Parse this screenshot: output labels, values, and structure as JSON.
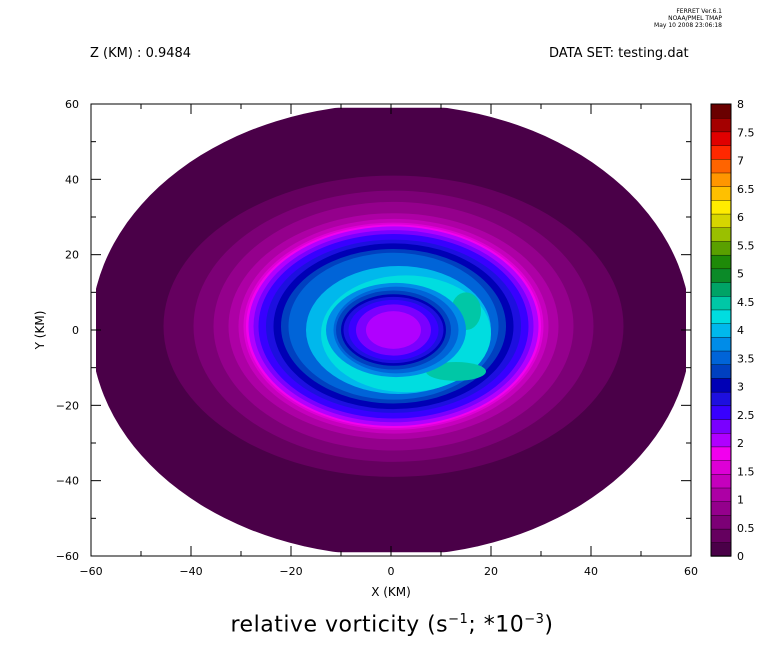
{
  "header": {
    "version": "FERRET  Ver.6.1",
    "org": "NOAA/PMEL TMAP",
    "timestamp": "May 10 2008 23:06:18"
  },
  "z_label": "Z (KM) : 0.9484",
  "dataset_label": "DATA SET: testing.dat",
  "colors": {
    "levels": [
      "#4a0048",
      "#65005f",
      "#7c0076",
      "#94008c",
      "#ad00a5",
      "#c500bd",
      "#dd00d6",
      "#f200ee",
      "#b000ff",
      "#7a00ff",
      "#3800ff",
      "#1d0fdf",
      "#0000b5",
      "#0040c0",
      "#0064d8",
      "#008ce8",
      "#00b8ec",
      "#00dde0",
      "#00c7a6",
      "#00a366",
      "#0b8a28",
      "#1e8a08",
      "#5aa000",
      "#9ac000",
      "#d6d600",
      "#ffec00",
      "#ffc000",
      "#ff9600",
      "#ff6400",
      "#ff2800",
      "#e00000",
      "#a40000",
      "#6a0000"
    ]
  },
  "chart_data": {
    "type": "heatmap",
    "title": "relative vorticity (s^-1; *10^-3)",
    "title_parts": {
      "main": "relative vorticity (s",
      "sup1": "−1",
      "mid": "; *10",
      "sup2": "−3",
      "end": ")"
    },
    "xlabel": "X (KM)",
    "ylabel": "Y (KM)",
    "xlim": [
      -60,
      60
    ],
    "ylim": [
      -60,
      60
    ],
    "xticks": [
      "−60",
      "−40",
      "−20",
      "0",
      "20",
      "40",
      "60"
    ],
    "yticks": [
      "60",
      "40",
      "20",
      "0",
      "−20",
      "−40",
      "−60"
    ],
    "colorbar": {
      "range": [
        0,
        8
      ],
      "step": 0.25,
      "tick_labels": [
        "8",
        "7.5",
        "7",
        "6.5",
        "6",
        "5.5",
        "5",
        "4.5",
        "4",
        "3.5",
        "3",
        "2.5",
        "2",
        "1.5",
        "1",
        "0.5",
        "0"
      ]
    },
    "contour_regions": [
      {
        "level": 0.0,
        "cx": 0,
        "cy": 0,
        "rx": 60,
        "ry": 60
      },
      {
        "level": 0.25,
        "cx": 0.5,
        "cy": 1,
        "rx": 46,
        "ry": 40
      },
      {
        "level": 0.5,
        "cx": 0.5,
        "cy": 1,
        "rx": 40,
        "ry": 36
      },
      {
        "level": 0.75,
        "cx": 0.5,
        "cy": 1,
        "rx": 36,
        "ry": 33
      },
      {
        "level": 1.0,
        "cx": 0.5,
        "cy": 1,
        "rx": 33,
        "ry": 30
      },
      {
        "level": 1.25,
        "cx": 0.5,
        "cy": 1,
        "rx": 31,
        "ry": 28.5
      },
      {
        "level": 1.5,
        "cx": 0.5,
        "cy": 1,
        "rx": 30,
        "ry": 27.5
      },
      {
        "level": 1.75,
        "cx": 0.5,
        "cy": 1,
        "rx": 29.5,
        "ry": 27
      },
      {
        "level": 2.0,
        "cx": 0.5,
        "cy": 1,
        "rx": 29,
        "ry": 26.5
      },
      {
        "level": 2.25,
        "cx": 0.5,
        "cy": 1,
        "rx": 28,
        "ry": 25.5
      },
      {
        "level": 2.5,
        "cx": 0.5,
        "cy": 1,
        "rx": 27,
        "ry": 24.5
      },
      {
        "level": 2.75,
        "cx": 0.5,
        "cy": 1,
        "rx": 25.5,
        "ry": 23
      },
      {
        "level": 3.0,
        "cx": 0.5,
        "cy": 1,
        "rx": 24,
        "ry": 22
      },
      {
        "level": 3.25,
        "cx": 0.5,
        "cy": 1,
        "rx": 22.5,
        "ry": 20.5
      },
      {
        "level": 3.5,
        "cx": 0.5,
        "cy": 1,
        "rx": 21,
        "ry": 19.5
      },
      {
        "level": 4.0,
        "cx": 1.5,
        "cy": 0,
        "rx": 18.5,
        "ry": 17
      },
      {
        "level": 4.25,
        "cx": 3,
        "cy": -1,
        "rx": 17,
        "ry": 15.5
      },
      {
        "level": 4.5,
        "cx": 13,
        "cy": -11,
        "rx": 6,
        "ry": 2.5
      },
      {
        "level": 4.5,
        "cx": 15,
        "cy": 5,
        "rx": 3,
        "ry": 5
      },
      {
        "level": 3.75,
        "cx": 1,
        "cy": 0,
        "rx": 14,
        "ry": 12.5
      },
      {
        "level": 3.5,
        "cx": 1,
        "cy": 0,
        "rx": 12.5,
        "ry": 11.5
      },
      {
        "level": 3.25,
        "cx": 0.5,
        "cy": 0,
        "rx": 11.5,
        "ry": 10.5
      },
      {
        "level": 3.0,
        "cx": 0.5,
        "cy": 0,
        "rx": 10.5,
        "ry": 9.5
      },
      {
        "level": 2.75,
        "cx": 0.5,
        "cy": 0,
        "rx": 10,
        "ry": 8.8
      },
      {
        "level": 2.5,
        "cx": 0.5,
        "cy": 0,
        "rx": 9,
        "ry": 8
      },
      {
        "level": 2.25,
        "cx": 0.5,
        "cy": 0,
        "rx": 7.5,
        "ry": 6.8
      },
      {
        "level": 2.0,
        "cx": 0.5,
        "cy": 0,
        "rx": 5.5,
        "ry": 5
      }
    ]
  }
}
